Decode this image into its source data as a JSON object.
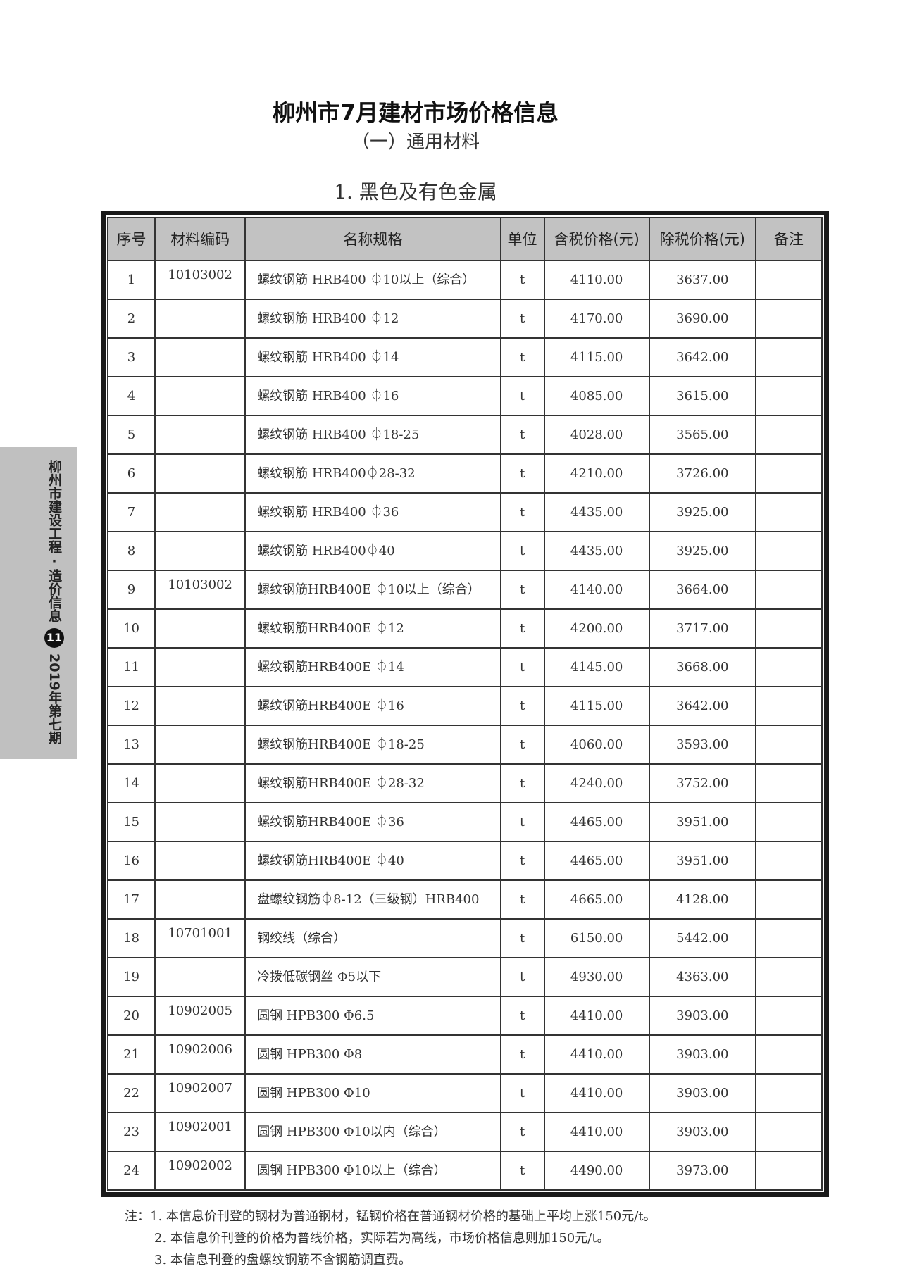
{
  "title": "柳州市7月建材市场价格信息",
  "subtitle": "（一）通用材料",
  "section": "1. 黑色及有色金属",
  "sidebar": {
    "publication": "柳州市建设工程·造价信息",
    "page_number": "11",
    "issue": "2019年第七期"
  },
  "table": {
    "headers": [
      "序号",
      "材料编码",
      "名称规格",
      "单位",
      "含税价格(元)",
      "除税价格(元)",
      "备注"
    ],
    "rows": [
      [
        "1",
        "10103002",
        "螺纹钢筋 HRB400 ⏀10以上（综合）",
        "t",
        "4110.00",
        "3637.00",
        ""
      ],
      [
        "2",
        "",
        "螺纹钢筋 HRB400 ⏀12",
        "t",
        "4170.00",
        "3690.00",
        ""
      ],
      [
        "3",
        "",
        "螺纹钢筋 HRB400 ⏀14",
        "t",
        "4115.00",
        "3642.00",
        ""
      ],
      [
        "4",
        "",
        "螺纹钢筋 HRB400 ⏀16",
        "t",
        "4085.00",
        "3615.00",
        ""
      ],
      [
        "5",
        "",
        "螺纹钢筋 HRB400 ⏀18-25",
        "t",
        "4028.00",
        "3565.00",
        ""
      ],
      [
        "6",
        "",
        "螺纹钢筋 HRB400⏀28-32",
        "t",
        "4210.00",
        "3726.00",
        ""
      ],
      [
        "7",
        "",
        "螺纹钢筋 HRB400 ⏀36",
        "t",
        "4435.00",
        "3925.00",
        ""
      ],
      [
        "8",
        "",
        "螺纹钢筋 HRB400⏀40",
        "t",
        "4435.00",
        "3925.00",
        ""
      ],
      [
        "9",
        "10103002",
        "螺纹钢筋HRB400E ⏀10以上（综合）",
        "t",
        "4140.00",
        "3664.00",
        ""
      ],
      [
        "10",
        "",
        "螺纹钢筋HRB400E ⏀12",
        "t",
        "4200.00",
        "3717.00",
        ""
      ],
      [
        "11",
        "",
        "螺纹钢筋HRB400E ⏀14",
        "t",
        "4145.00",
        "3668.00",
        ""
      ],
      [
        "12",
        "",
        "螺纹钢筋HRB400E ⏀16",
        "t",
        "4115.00",
        "3642.00",
        ""
      ],
      [
        "13",
        "",
        "螺纹钢筋HRB400E ⏀18-25",
        "t",
        "4060.00",
        "3593.00",
        ""
      ],
      [
        "14",
        "",
        "螺纹钢筋HRB400E ⏀28-32",
        "t",
        "4240.00",
        "3752.00",
        ""
      ],
      [
        "15",
        "",
        "螺纹钢筋HRB400E ⏀36",
        "t",
        "4465.00",
        "3951.00",
        ""
      ],
      [
        "16",
        "",
        "螺纹钢筋HRB400E ⏀40",
        "t",
        "4465.00",
        "3951.00",
        ""
      ],
      [
        "17",
        "",
        "盘螺纹钢筋⏀8-12（三级钢）HRB400",
        "t",
        "4665.00",
        "4128.00",
        ""
      ],
      [
        "18",
        "10701001",
        "钢绞线（综合）",
        "t",
        "6150.00",
        "5442.00",
        ""
      ],
      [
        "19",
        "",
        "冷拨低碳钢丝 Φ5以下",
        "t",
        "4930.00",
        "4363.00",
        ""
      ],
      [
        "20",
        "10902005",
        "圆钢 HPB300 Φ6.5",
        "t",
        "4410.00",
        "3903.00",
        ""
      ],
      [
        "21",
        "10902006",
        "圆钢 HPB300 Φ8",
        "t",
        "4410.00",
        "3903.00",
        ""
      ],
      [
        "22",
        "10902007",
        "圆钢 HPB300 Φ10",
        "t",
        "4410.00",
        "3903.00",
        ""
      ],
      [
        "23",
        "10902001",
        "圆钢 HPB300 Φ10以内（综合）",
        "t",
        "4410.00",
        "3903.00",
        ""
      ],
      [
        "24",
        "10902002",
        "圆钢 HPB300 Φ10以上（综合）",
        "t",
        "4490.00",
        "3973.00",
        ""
      ]
    ]
  },
  "notes": [
    "注：1. 本信息价刊登的钢材为普通钢材，锰钢价格在普通钢材价格的基础上平均上涨150元/t。",
    "2. 本信息价刊登的价格为普线价格，实际若为高线，市场价格信息则加150元/t。",
    "3. 本信息刊登的盘螺纹钢筋不含钢筋调直费。"
  ]
}
